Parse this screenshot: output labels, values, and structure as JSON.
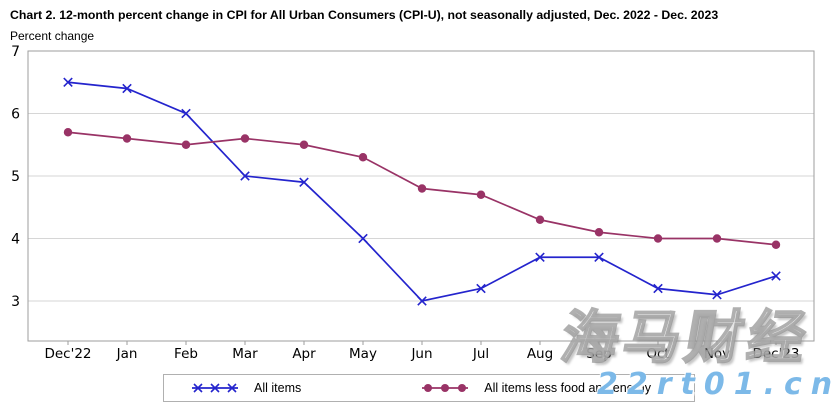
{
  "header": {
    "title": "Chart 2. 12-month percent change in CPI for All Urban Consumers (CPI-U), not seasonally adjusted, Dec. 2022 - Dec. 2023",
    "subtitle": "Percent change"
  },
  "chart_data": {
    "type": "line",
    "title": "Chart 2. 12-month percent change in CPI for All Urban Consumers (CPI-U), not seasonally adjusted, Dec. 2022 - Dec. 2023",
    "xlabel": "",
    "ylabel": "Percent change",
    "categories": [
      "Dec'22",
      "Jan",
      "Feb",
      "Mar",
      "Apr",
      "May",
      "Jun",
      "Jul",
      "Aug",
      "Sep",
      "Oct",
      "Nov",
      "Dec'23"
    ],
    "series": [
      {
        "name": "All items",
        "marker": "x",
        "color": "#2424cd",
        "values": [
          6.5,
          6.4,
          6.0,
          5.0,
          4.9,
          4.0,
          3.0,
          3.2,
          3.7,
          3.7,
          3.2,
          3.1,
          3.4
        ]
      },
      {
        "name": "All items less food and energy",
        "marker": "circle",
        "color": "#993366",
        "values": [
          5.7,
          5.6,
          5.5,
          5.6,
          5.5,
          5.3,
          4.8,
          4.7,
          4.3,
          4.1,
          4.0,
          4.0,
          3.9
        ]
      }
    ],
    "yticks": [
      3,
      4,
      5,
      6,
      7
    ],
    "ylim": [
      2.36,
      7
    ],
    "grid": true,
    "legend_position": "bottom",
    "grid_color": "#d6d6d6",
    "border_color": "#9e9e9e"
  },
  "watermark": {
    "text_cn": "海马财经",
    "url": "22rt01.cn",
    "url_color": "#7cb9e8"
  }
}
